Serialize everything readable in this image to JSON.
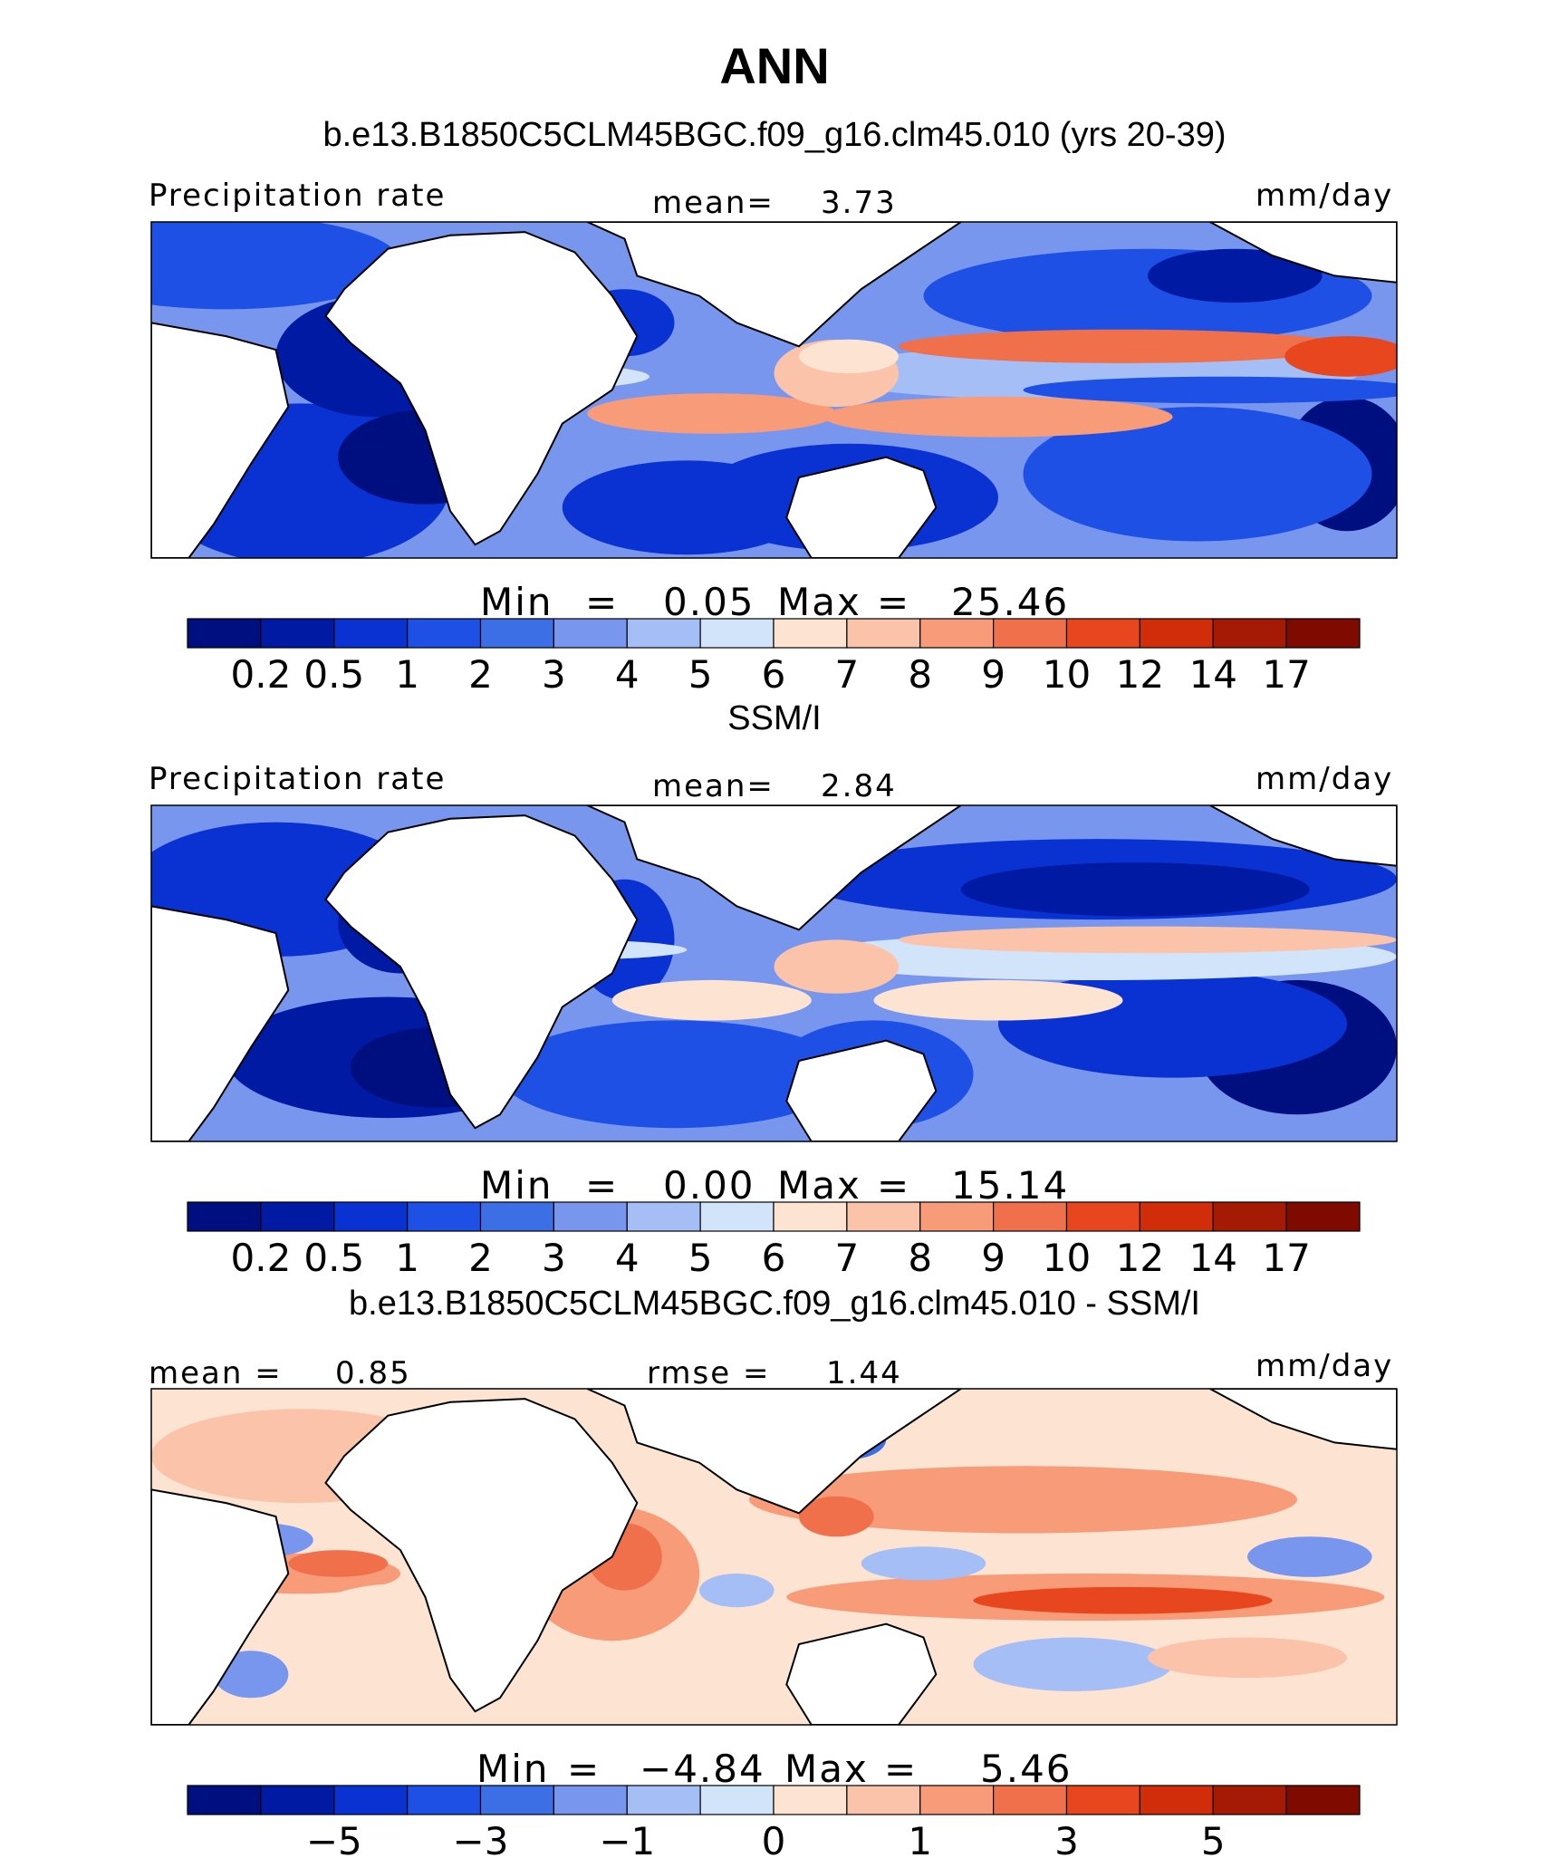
{
  "figure_title": "ANN",
  "chart_data": [
    {
      "type": "heatmap",
      "title": "b.e13.B1850C5CLM45BGC.f09_g16.clm45.010 (yrs 20-39)",
      "left_label": "Precipitation rate",
      "center_label": "mean=",
      "center_value": "3.73",
      "units": "mm/day",
      "min_label": "Min",
      "min_value": "0.05",
      "max_label": "Max",
      "max_value": "25.46",
      "colorbar_labels": [
        "0.2",
        "0.5",
        "1",
        "2",
        "3",
        "4",
        "5",
        "6",
        "7",
        "8",
        "9",
        "10",
        "12",
        "14",
        "17"
      ],
      "colorbar_levels": [
        0.2,
        0.5,
        1,
        2,
        3,
        4,
        5,
        6,
        7,
        8,
        9,
        10,
        12,
        14,
        17
      ]
    },
    {
      "type": "heatmap",
      "title": "SSM/I",
      "left_label": "Precipitation rate",
      "center_label": "mean=",
      "center_value": "2.84",
      "units": "mm/day",
      "min_label": "Min",
      "min_value": "0.00",
      "max_label": "Max",
      "max_value": "15.14",
      "colorbar_labels": [
        "0.2",
        "0.5",
        "1",
        "2",
        "3",
        "4",
        "5",
        "6",
        "7",
        "8",
        "9",
        "10",
        "12",
        "14",
        "17"
      ],
      "colorbar_levels": [
        0.2,
        0.5,
        1,
        2,
        3,
        4,
        5,
        6,
        7,
        8,
        9,
        10,
        12,
        14,
        17
      ]
    },
    {
      "type": "heatmap",
      "title": "b.e13.B1850C5CLM45BGC.f09_g16.clm45.010 - SSM/I",
      "left_label": "mean =",
      "left_value": "0.85",
      "center_label": "rmse =",
      "center_value": "1.44",
      "units": "mm/day",
      "min_label": "Min",
      "min_value": "−4.84",
      "max_label": "Max",
      "max_value": "5.46",
      "colorbar_labels": [
        "−5",
        "−3",
        "−1",
        "0",
        "1",
        "3",
        "5"
      ],
      "colorbar_levels": [
        -6,
        -5,
        -4,
        -3,
        -2,
        -1,
        -0.5,
        0,
        0.5,
        1,
        2,
        3,
        4,
        5,
        6
      ]
    }
  ],
  "colors": {
    "palette": [
      "#000f7f",
      "#001aa3",
      "#0a32d2",
      "#1e50e6",
      "#3c6ee6",
      "#7896ee",
      "#a5bef5",
      "#d2e4fa",
      "#fde4d2",
      "#fbc3aa",
      "#f79b78",
      "#f0704b",
      "#e8461e",
      "#d22d0a",
      "#a51a05",
      "#7f0a00"
    ]
  }
}
